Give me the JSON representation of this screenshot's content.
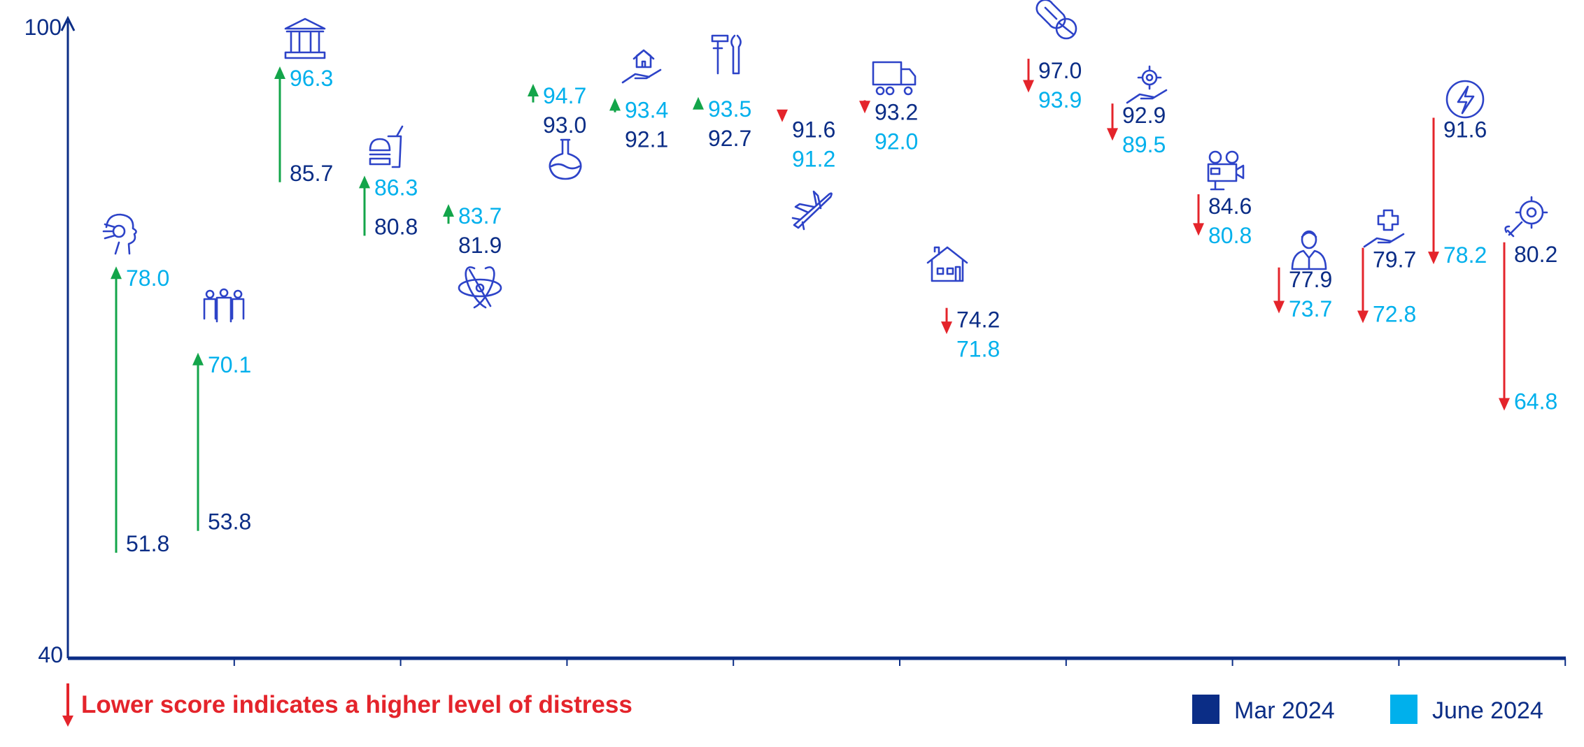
{
  "chart_data": {
    "type": "arrow-dumbbell",
    "ylim": [
      40,
      100
    ],
    "y_ticks": [
      "40",
      "100"
    ],
    "series": [
      {
        "name": "Mar 2024",
        "color": "#0b2d86"
      },
      {
        "name": "June 2024",
        "color": "#00b0ec"
      }
    ],
    "colors": {
      "up": "#13a54a",
      "down": "#e4242b",
      "icon": "#2d43c8",
      "axis": "#0b2d86"
    },
    "footnote": "Lower score indicates a higher level of distress",
    "categories": [
      {
        "icon": "ai-head-icon",
        "mar": 51.8,
        "june": 78.0,
        "mar_label": "51.8",
        "june_label": "78.0"
      },
      {
        "icon": "people-group-icon",
        "mar": 53.8,
        "june": 70.1,
        "mar_label": "53.8",
        "june_label": "70.1"
      },
      {
        "icon": "government-building-icon",
        "mar": 85.7,
        "june": 96.3,
        "mar_label": "85.7",
        "june_label": "96.3"
      },
      {
        "icon": "fast-food-icon",
        "mar": 80.8,
        "june": 86.3,
        "mar_label": "80.8",
        "june_label": "86.3"
      },
      {
        "icon": "atom-icon",
        "mar": 81.9,
        "june": 83.7,
        "mar_label": "81.9",
        "june_label": "83.7"
      },
      {
        "icon": "flask-icon",
        "mar": 93.0,
        "june": 94.7,
        "mar_label": "93.0",
        "june_label": "94.7"
      },
      {
        "icon": "home-in-hand-icon",
        "mar": 92.1,
        "june": 93.4,
        "mar_label": "92.1",
        "june_label": "93.4"
      },
      {
        "icon": "tools-icon",
        "mar": 92.7,
        "june": 93.5,
        "mar_label": "92.7",
        "june_label": "93.5"
      },
      {
        "icon": "airplane-icon",
        "mar": 91.6,
        "june": 91.2,
        "mar_label": "91.6",
        "june_label": "91.2"
      },
      {
        "icon": "truck-icon",
        "mar": 93.2,
        "june": 92.0,
        "mar_label": "93.2",
        "june_label": "92.0"
      },
      {
        "icon": "house-icon",
        "mar": 74.2,
        "june": 71.8,
        "mar_label": "74.2",
        "june_label": "71.8"
      },
      {
        "icon": "pills-icon",
        "mar": 97.0,
        "june": 93.9,
        "mar_label": "97.0",
        "june_label": "93.9"
      },
      {
        "icon": "gear-in-hand-icon",
        "mar": 92.9,
        "june": 89.5,
        "mar_label": "92.9",
        "june_label": "89.5"
      },
      {
        "icon": "film-camera-icon",
        "mar": 84.6,
        "june": 80.8,
        "mar_label": "84.6",
        "june_label": "80.8"
      },
      {
        "icon": "professional-person-icon",
        "mar": 77.9,
        "june": 73.7,
        "mar_label": "77.9",
        "june_label": "73.7"
      },
      {
        "icon": "healthcare-hand-icon",
        "mar": 79.7,
        "june": 72.8,
        "mar_label": "79.7",
        "june_label": "72.8"
      },
      {
        "icon": "energy-bolt-icon",
        "mar": 91.6,
        "june": 78.2,
        "mar_label": "91.6",
        "june_label": "78.2"
      },
      {
        "icon": "gear-wrench-icon",
        "mar": 80.2,
        "june": 64.8,
        "mar_label": "80.2",
        "june_label": "64.8"
      }
    ]
  }
}
